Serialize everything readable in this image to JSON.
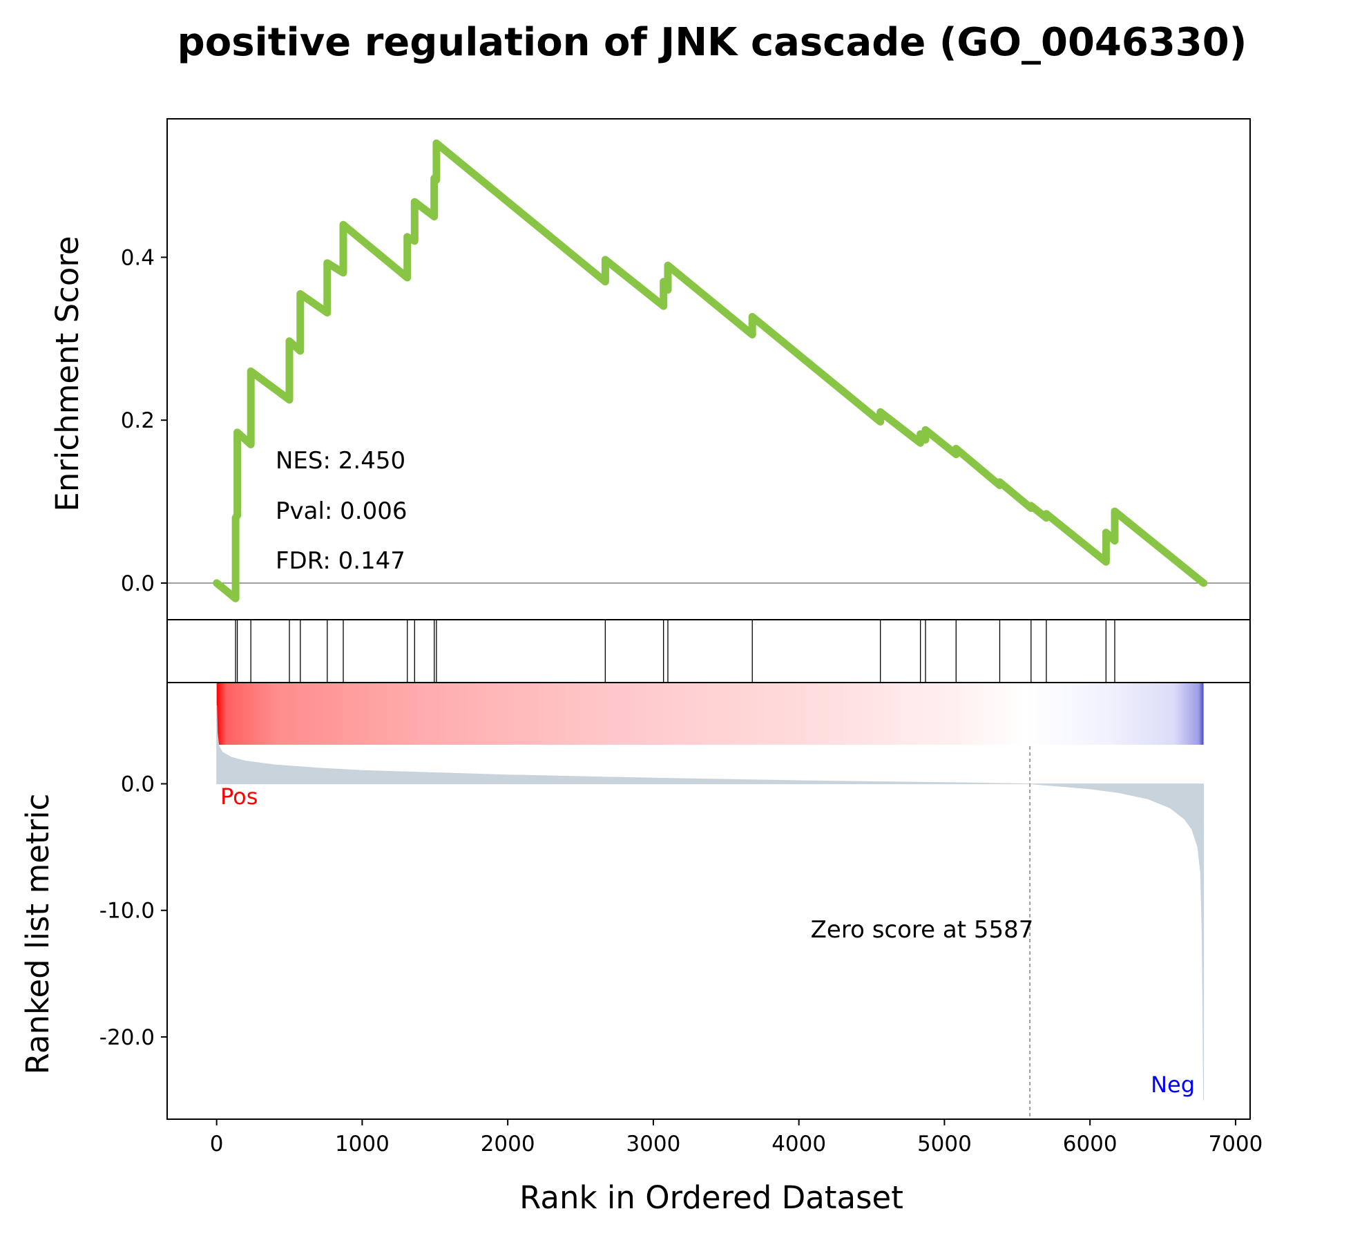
{
  "title": "positive regulation of JNK cascade (GO_0046330)",
  "chart_data": {
    "type": "line",
    "title": "positive regulation of JNK cascade (GO_0046330)",
    "xlabel": "Rank in Ordered Dataset",
    "xlim": [
      -340,
      7100
    ],
    "xticks": [
      0,
      1000,
      2000,
      3000,
      4000,
      5000,
      6000,
      7000
    ],
    "xtick_labels": [
      "0",
      "1000",
      "2000",
      "3000",
      "4000",
      "5000",
      "6000",
      "7000"
    ],
    "es_panel": {
      "ylabel": "Enrichment Score",
      "ylim": [
        -0.045,
        0.57
      ],
      "yticks": [
        0.0,
        0.2,
        0.4
      ],
      "ytick_labels": [
        "0.0",
        "0.2",
        "0.4"
      ],
      "line_color": "#88c544",
      "zero_line": true,
      "series": [
        {
          "x": [
            0,
            130,
            130,
            142,
            142,
            235,
            235,
            500,
            500,
            575,
            575,
            760,
            760,
            870,
            870,
            1310,
            1310,
            1360,
            1360,
            1495,
            1495,
            1510,
            1510,
            2670,
            2670,
            3070,
            3070,
            3100,
            3100,
            3680,
            3680,
            4560,
            4560,
            4835,
            4835,
            4870,
            4870,
            5080,
            5080,
            5380,
            5380,
            5595,
            5595,
            5700,
            5700,
            6110,
            6110,
            6170,
            6170,
            6780
          ],
          "y": [
            0.0,
            -0.019,
            0.08,
            0.083,
            0.185,
            0.17,
            0.26,
            0.225,
            0.297,
            0.285,
            0.355,
            0.332,
            0.393,
            0.381,
            0.44,
            0.375,
            0.425,
            0.42,
            0.468,
            0.45,
            0.497,
            0.495,
            0.54,
            0.37,
            0.397,
            0.34,
            0.37,
            0.36,
            0.39,
            0.305,
            0.327,
            0.198,
            0.21,
            0.172,
            0.183,
            0.176,
            0.188,
            0.158,
            0.165,
            0.12,
            0.124,
            0.092,
            0.095,
            0.08,
            0.085,
            0.026,
            0.062,
            0.052,
            0.088,
            0.0
          ]
        }
      ],
      "annotations": [
        "NES: 2.450",
        "Pval: 0.006",
        "FDR: 0.147"
      ]
    },
    "hits_panel": {
      "hit_ranks": [
        130,
        142,
        235,
        500,
        575,
        760,
        870,
        1310,
        1360,
        1495,
        1510,
        2670,
        3070,
        3100,
        3680,
        4560,
        4835,
        4870,
        5080,
        5380,
        5595,
        5700,
        6110,
        6170
      ]
    },
    "ranked_panel": {
      "ylabel": "Ranked list metric",
      "ylim": [
        -26.5,
        8
      ],
      "yticks": [
        0.0,
        -10.0,
        -20.0
      ],
      "ytick_labels": [
        "0.0",
        "-10.0",
        "-20.0"
      ],
      "fill_color": "#c9d3dc",
      "n_genes": 6780,
      "zero_score_rank": 5587,
      "zero_score_label": "Zero score at 5587",
      "pos_label": "Pos",
      "neg_label": "Neg",
      "pos_color": "#ff0000",
      "neg_color": "#0000ff",
      "curve": {
        "x": [
          0,
          5,
          15,
          40,
          100,
          200,
          400,
          700,
          1000,
          2000,
          3000,
          4000,
          5000,
          5587,
          5800,
          6000,
          6200,
          6400,
          6550,
          6650,
          6700,
          6740,
          6760,
          6770,
          6780
        ],
        "y": [
          6.2,
          4.0,
          3.0,
          2.5,
          2.1,
          1.8,
          1.5,
          1.25,
          1.05,
          0.7,
          0.45,
          0.25,
          0.1,
          0.0,
          -0.2,
          -0.4,
          -0.7,
          -1.2,
          -1.9,
          -2.8,
          -3.6,
          -5.0,
          -7.0,
          -12.0,
          -25.0
        ]
      }
    }
  }
}
